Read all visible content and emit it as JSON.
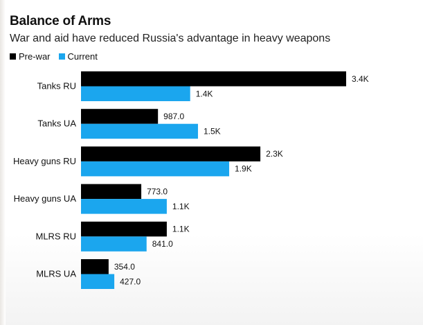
{
  "chart_data": {
    "type": "bar",
    "orientation": "horizontal",
    "title": "Balance of Arms",
    "subtitle": "War and aid have reduced Russia's advantage in heavy weapons",
    "categories": [
      "Tanks RU",
      "Tanks UA",
      "Heavy guns RU",
      "Heavy guns UA",
      "MLRS RU",
      "MLRS UA"
    ],
    "series": [
      {
        "name": "Pre-war",
        "color": "#000000",
        "values": [
          3400,
          987,
          2300,
          773,
          1100,
          354
        ],
        "labels": [
          "3.4K",
          "987.0",
          "2.3K",
          "773.0",
          "1.1K",
          "354.0"
        ]
      },
      {
        "name": "Current",
        "color": "#1ba6ee",
        "values": [
          1400,
          1500,
          1900,
          1100,
          841,
          427
        ],
        "labels": [
          "1.4K",
          "1.5K",
          "1.9K",
          "1.1K",
          "841.0",
          "427.0"
        ]
      }
    ],
    "xlim": [
      0,
      3400
    ],
    "grid": false,
    "legend_position": "top-left"
  }
}
